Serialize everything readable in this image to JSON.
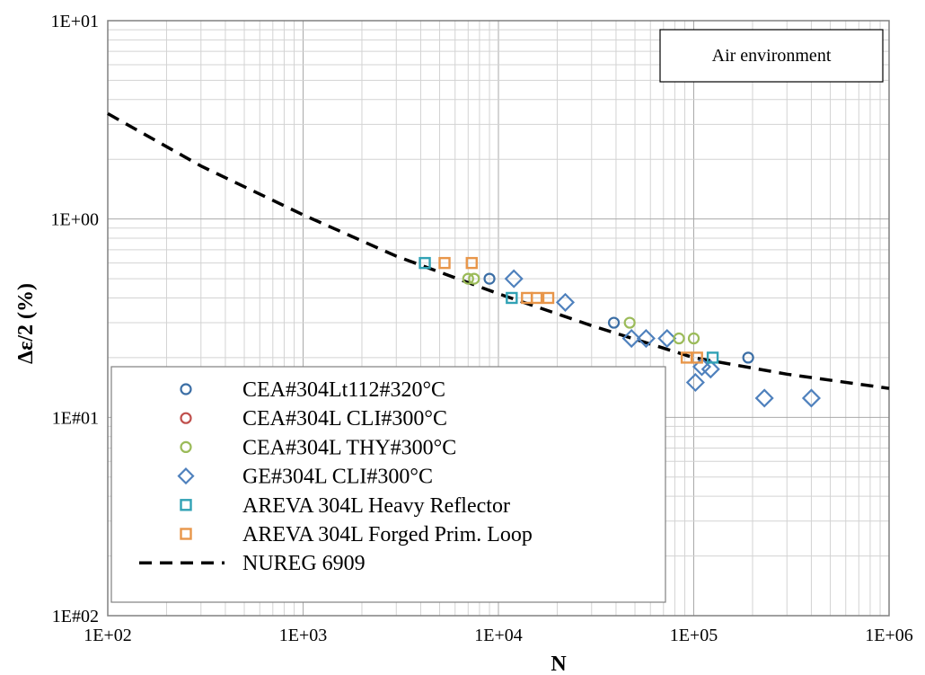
{
  "chart_data": {
    "type": "scatter",
    "x_scale": "log",
    "y_scale": "log",
    "xlim": [
      100,
      1000000
    ],
    "ylim": [
      0.01,
      10
    ],
    "xlabel": "N",
    "ylabel": "Δε/2 (%)",
    "x_ticks": [
      100,
      1000,
      10000,
      100000,
      1000000
    ],
    "x_tick_labels": [
      "1E+02",
      "1E+03",
      "1E+04",
      "1E+05",
      "1E+06"
    ],
    "y_ticks": [
      0.01,
      0.1,
      1,
      10
    ],
    "y_tick_labels": [
      "1E#02",
      "1E#01",
      "1E+00",
      "1E+01"
    ],
    "grid": true,
    "legend_position": "bottom-left",
    "annotation": "Air environment",
    "series": [
      {
        "name": "CEA#304Lt112#320°C",
        "marker": "circle",
        "color": "#3b6ea5",
        "points": [
          [
            9000,
            0.5
          ],
          [
            39000,
            0.3
          ],
          [
            190000,
            0.2
          ]
        ]
      },
      {
        "name": "CEA#304L CLI#300°C",
        "marker": "circle",
        "color": "#c0504d",
        "points": []
      },
      {
        "name": "CEA#304L THY#300°C",
        "marker": "circle",
        "color": "#9bbb59",
        "points": [
          [
            7000,
            0.5
          ],
          [
            7500,
            0.5
          ],
          [
            47000,
            0.3
          ],
          [
            84000,
            0.25
          ],
          [
            100000,
            0.25
          ]
        ]
      },
      {
        "name": "GE#304L CLI#300°C",
        "marker": "diamond",
        "color": "#4f81bd",
        "points": [
          [
            12000,
            0.5
          ],
          [
            22000,
            0.38
          ],
          [
            48000,
            0.25
          ],
          [
            57000,
            0.25
          ],
          [
            73000,
            0.25
          ],
          [
            102000,
            0.15
          ],
          [
            110000,
            0.18
          ],
          [
            122000,
            0.175
          ],
          [
            230000,
            0.125
          ],
          [
            400000,
            0.125
          ]
        ]
      },
      {
        "name": "AREVA 304L Heavy Reflector",
        "marker": "square",
        "color": "#31a2b5",
        "points": [
          [
            4200,
            0.6
          ],
          [
            11700,
            0.4
          ],
          [
            125000,
            0.2
          ]
        ]
      },
      {
        "name": "AREVA 304L Forged Prim. Loop",
        "marker": "square",
        "color": "#e8964a",
        "points": [
          [
            5300,
            0.6
          ],
          [
            7300,
            0.6
          ],
          [
            14000,
            0.4
          ],
          [
            15700,
            0.4
          ],
          [
            18000,
            0.4
          ],
          [
            92000,
            0.2
          ],
          [
            104000,
            0.2
          ]
        ]
      },
      {
        "name": "NUREG 6909",
        "marker": "dashed-line",
        "color": "#000000",
        "points": [
          [
            100,
            3.4
          ],
          [
            300,
            1.85
          ],
          [
            1000,
            1.05
          ],
          [
            3000,
            0.65
          ],
          [
            10000,
            0.42
          ],
          [
            30000,
            0.29
          ],
          [
            100000,
            0.2
          ],
          [
            300000,
            0.165
          ],
          [
            1000000,
            0.14
          ]
        ]
      }
    ]
  }
}
